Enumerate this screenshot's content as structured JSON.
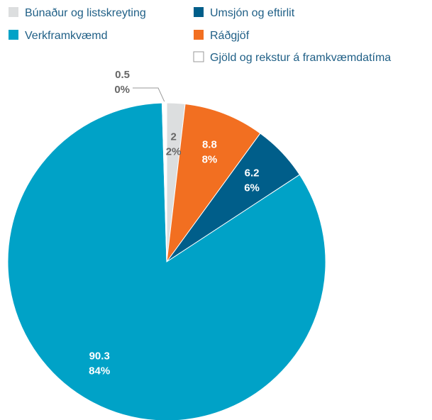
{
  "chart_data": {
    "type": "pie",
    "title": "",
    "legend_placement": "top",
    "series": [
      {
        "name": "Búnaður og listskreyting",
        "value": 2,
        "percent_label": "2%",
        "color": "#dcdedf",
        "label_color": "#666666"
      },
      {
        "name": "Ráðgjöf",
        "value": 8.8,
        "percent_label": "8%",
        "color": "#f26f21",
        "label_color": "#ffffff"
      },
      {
        "name": "Umsjón og eftirlit",
        "value": 6.2,
        "percent_label": "6%",
        "color": "#005e8a",
        "label_color": "#ffffff"
      },
      {
        "name": "Verkframkvæmd",
        "value": 90.3,
        "percent_label": "84%",
        "color": "#00a2c7",
        "label_color": "#ffffff"
      },
      {
        "name": "Gjöld og rekstur á framkvæmdatíma",
        "value": 0.5,
        "percent_label": "0%",
        "color": "#ffffff",
        "label_color": "#666666"
      }
    ],
    "legend_order": [
      0,
      3,
      2,
      1,
      4
    ]
  }
}
